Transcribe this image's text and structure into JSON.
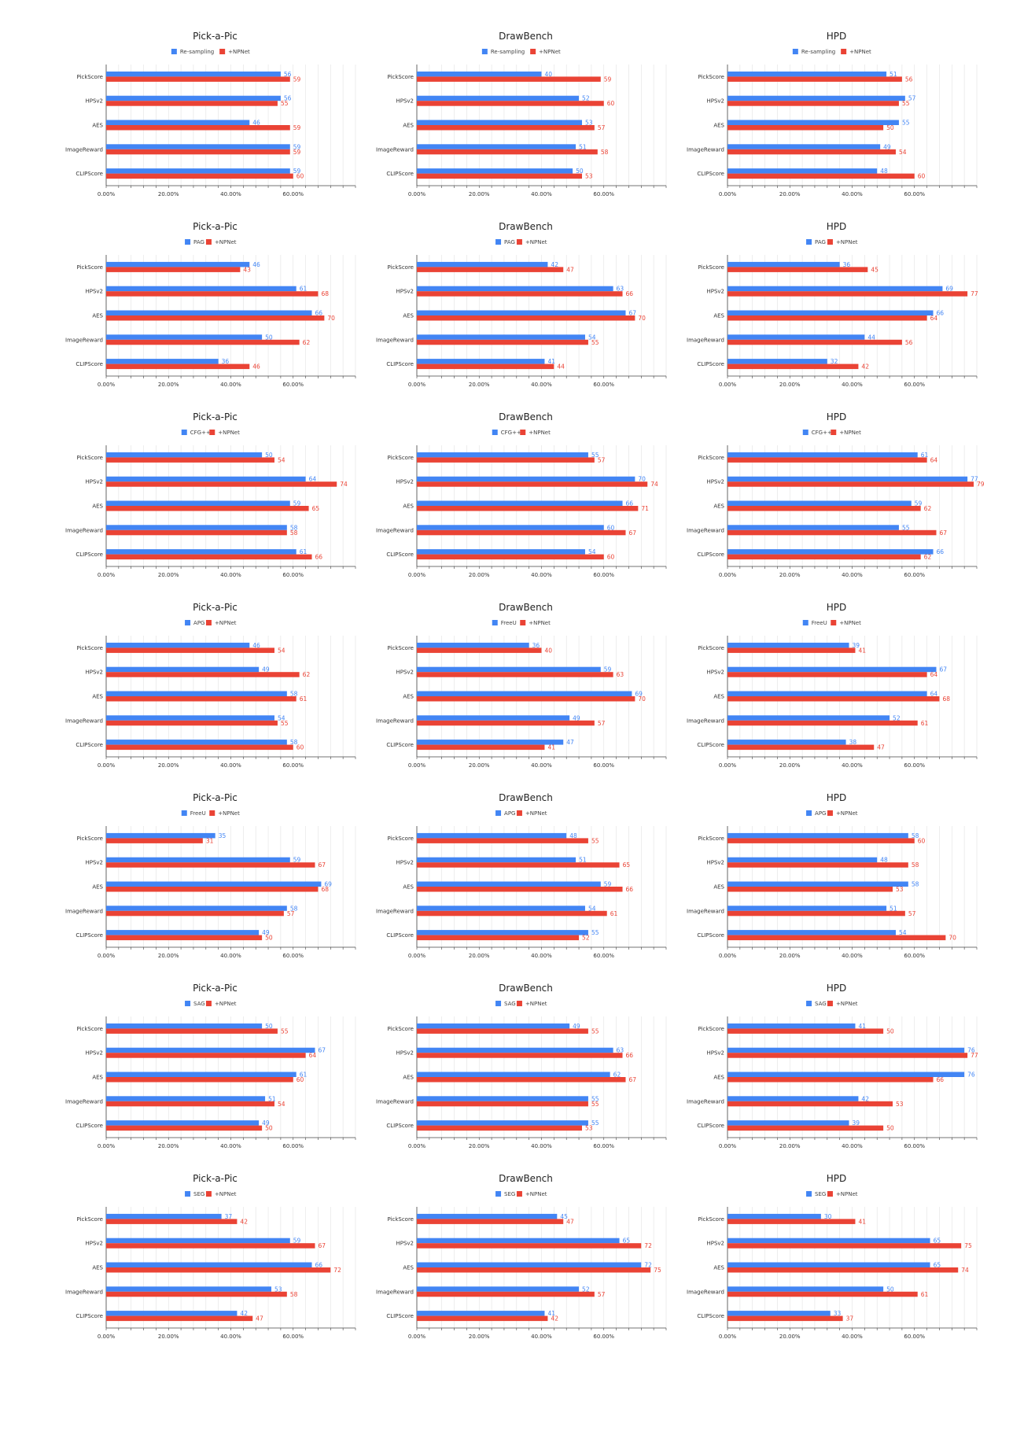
{
  "colors": {
    "baseline": "#4285F4",
    "npnet": "#EA4335",
    "grid": "#e2e2e2",
    "axis": "#444444"
  },
  "chart_data": [
    {
      "type": "bar",
      "title": "Pick-a-Pic",
      "series": [
        {
          "name": "Re-sampling",
          "values": [
            56,
            56,
            46,
            59,
            59
          ]
        },
        {
          "name": "+NPNet",
          "values": [
            59,
            55,
            59,
            59,
            60
          ]
        }
      ],
      "categories": [
        "PickScore",
        "HPSv2",
        "AES",
        "ImageReward",
        "CLIPScore"
      ],
      "xticks": [
        "0.00%",
        "20.00%",
        "40.00%",
        "60.00%"
      ],
      "xlim": [
        0,
        80
      ]
    },
    {
      "type": "bar",
      "title": "DrawBench",
      "series": [
        {
          "name": "Re-sampling",
          "values": [
            40,
            52,
            53,
            51,
            50
          ]
        },
        {
          "name": "+NPNet",
          "values": [
            59,
            60,
            57,
            58,
            53
          ]
        }
      ],
      "categories": [
        "PickScore",
        "HPSv2",
        "AES",
        "ImageReward",
        "CLIPScore"
      ],
      "xticks": [
        "0.00%",
        "20.00%",
        "40.00%",
        "60.00%"
      ],
      "xlim": [
        0,
        80
      ]
    },
    {
      "type": "bar",
      "title": "HPD",
      "series": [
        {
          "name": "Re-sampling",
          "values": [
            51,
            57,
            55,
            49,
            48
          ]
        },
        {
          "name": "+NPNet",
          "values": [
            56,
            55,
            50,
            54,
            60
          ]
        }
      ],
      "categories": [
        "PickScore",
        "HPSv2",
        "AES",
        "ImageReward",
        "CLIPScore"
      ],
      "xticks": [
        "0.00%",
        "20.00%",
        "40.00%",
        "60.00%"
      ],
      "xlim": [
        0,
        80
      ]
    },
    {
      "type": "bar",
      "title": "Pick-a-Pic",
      "series": [
        {
          "name": "PAG",
          "values": [
            46,
            61,
            66,
            50,
            36
          ]
        },
        {
          "name": "+NPNet",
          "values": [
            43,
            68,
            70,
            62,
            46
          ]
        }
      ],
      "categories": [
        "PickScore",
        "HPSv2",
        "AES",
        "ImageReward",
        "CLIPScore"
      ],
      "xticks": [
        "0.00%",
        "20.00%",
        "40.00%",
        "60.00%"
      ],
      "xlim": [
        0,
        80
      ]
    },
    {
      "type": "bar",
      "title": "DrawBench",
      "series": [
        {
          "name": "PAG",
          "values": [
            42,
            63,
            67,
            54,
            41
          ]
        },
        {
          "name": "+NPNet",
          "values": [
            47,
            66,
            70,
            55,
            44
          ]
        }
      ],
      "categories": [
        "PickScore",
        "HPSv2",
        "AES",
        "ImageReward",
        "CLIPScore"
      ],
      "xticks": [
        "0.00%",
        "20.00%",
        "40.00%",
        "60.00%"
      ],
      "xlim": [
        0,
        80
      ]
    },
    {
      "type": "bar",
      "title": "HPD",
      "series": [
        {
          "name": "PAG",
          "values": [
            36,
            69,
            66,
            44,
            32
          ]
        },
        {
          "name": "+NPNet",
          "values": [
            45,
            77,
            64,
            56,
            42
          ]
        }
      ],
      "categories": [
        "PickScore",
        "HPSv2",
        "AES",
        "ImageReward",
        "CLIPScore"
      ],
      "xticks": [
        "0.00%",
        "20.00%",
        "40.00%",
        "60.00%"
      ],
      "xlim": [
        0,
        80
      ]
    },
    {
      "type": "bar",
      "title": "Pick-a-Pic",
      "series": [
        {
          "name": "CFG++",
          "values": [
            50,
            64,
            59,
            58,
            61
          ]
        },
        {
          "name": "+NPNet",
          "values": [
            54,
            74,
            65,
            58,
            66
          ]
        }
      ],
      "categories": [
        "PickScore",
        "HPSv2",
        "AES",
        "ImageReward",
        "CLIPScore"
      ],
      "xticks": [
        "0.00%",
        "20.00%",
        "40.00%",
        "60.00%"
      ],
      "xlim": [
        0,
        80
      ]
    },
    {
      "type": "bar",
      "title": "DrawBench",
      "series": [
        {
          "name": "CFG++",
          "values": [
            55,
            70,
            66,
            60,
            54
          ]
        },
        {
          "name": "+NPNet",
          "values": [
            57,
            74,
            71,
            67,
            60
          ]
        }
      ],
      "categories": [
        "PickScore",
        "HPSv2",
        "AES",
        "ImageReward",
        "CLIPScore"
      ],
      "xticks": [
        "0.00%",
        "20.00%",
        "40.00%",
        "60.00%"
      ],
      "xlim": [
        0,
        80
      ]
    },
    {
      "type": "bar",
      "title": "HPD",
      "series": [
        {
          "name": "CFG++",
          "values": [
            61,
            77,
            59,
            55,
            66
          ]
        },
        {
          "name": "+NPNet",
          "values": [
            64,
            79,
            62,
            67,
            62
          ]
        }
      ],
      "categories": [
        "PickScore",
        "HPSv2",
        "AES",
        "ImageReward",
        "CLIPScore"
      ],
      "xticks": [
        "0.00%",
        "20.00%",
        "40.00%",
        "60.00%"
      ],
      "xlim": [
        0,
        80
      ]
    },
    {
      "type": "bar",
      "title": "Pick-a-Pic",
      "series": [
        {
          "name": "APG",
          "values": [
            46,
            49,
            58,
            54,
            58
          ]
        },
        {
          "name": "+NPNet",
          "values": [
            54,
            62,
            61,
            55,
            60
          ]
        }
      ],
      "categories": [
        "PickScore",
        "HPSv2",
        "AES",
        "ImageReward",
        "CLIPScore"
      ],
      "xticks": [
        "0.00%",
        "20.00%",
        "40.00%",
        "60.00%"
      ],
      "xlim": [
        0,
        80
      ]
    },
    {
      "type": "bar",
      "title": "DrawBench",
      "series": [
        {
          "name": "FreeU",
          "values": [
            36,
            59,
            69,
            49,
            47
          ]
        },
        {
          "name": "+NPNet",
          "values": [
            40,
            63,
            70,
            57,
            41
          ]
        }
      ],
      "categories": [
        "PickScore",
        "HPSv2",
        "AES",
        "ImageReward",
        "CLIPScore"
      ],
      "xticks": [
        "0.00%",
        "20.00%",
        "40.00%",
        "60.00%"
      ],
      "xlim": [
        0,
        80
      ]
    },
    {
      "type": "bar",
      "title": "HPD",
      "series": [
        {
          "name": "FreeU",
          "values": [
            39,
            67,
            64,
            52,
            38
          ]
        },
        {
          "name": "+NPNet",
          "values": [
            41,
            64,
            68,
            61,
            47
          ]
        }
      ],
      "categories": [
        "PickScore",
        "HPSv2",
        "AES",
        "ImageReward",
        "CLIPScore"
      ],
      "xticks": [
        "0.00%",
        "20.00%",
        "40.00%",
        "60.00%"
      ],
      "xlim": [
        0,
        80
      ]
    },
    {
      "type": "bar",
      "title": "Pick-a-Pic",
      "series": [
        {
          "name": "FreeU",
          "values": [
            35,
            59,
            69,
            58,
            49
          ]
        },
        {
          "name": "+NPNet",
          "values": [
            31,
            67,
            68,
            57,
            50
          ]
        }
      ],
      "categories": [
        "PickScore",
        "HPSv2",
        "AES",
        "ImageReward",
        "CLIPScore"
      ],
      "xticks": [
        "0.00%",
        "20.00%",
        "40.00%",
        "60.00%"
      ],
      "xlim": [
        0,
        80
      ]
    },
    {
      "type": "bar",
      "title": "DrawBench",
      "series": [
        {
          "name": "APG",
          "values": [
            48,
            51,
            59,
            54,
            55
          ]
        },
        {
          "name": "+NPNet",
          "values": [
            55,
            65,
            66,
            61,
            52
          ]
        }
      ],
      "categories": [
        "PickScore",
        "HPSv2",
        "AES",
        "ImageReward",
        "CLIPScore"
      ],
      "xticks": [
        "0.00%",
        "20.00%",
        "40.00%",
        "60.00%"
      ],
      "xlim": [
        0,
        80
      ]
    },
    {
      "type": "bar",
      "title": "HPD",
      "series": [
        {
          "name": "APG",
          "values": [
            58,
            48,
            58,
            51,
            54
          ]
        },
        {
          "name": "+NPNet",
          "values": [
            60,
            58,
            53,
            57,
            70
          ]
        }
      ],
      "categories": [
        "PickScore",
        "HPSv2",
        "AES",
        "ImageReward",
        "CLIPScore"
      ],
      "xticks": [
        "0.00%",
        "20.00%",
        "40.00%",
        "60.00%"
      ],
      "xlim": [
        0,
        80
      ]
    },
    {
      "type": "bar",
      "title": "Pick-a-Pic",
      "series": [
        {
          "name": "SAG",
          "values": [
            50,
            67,
            61,
            51,
            49
          ]
        },
        {
          "name": "+NPNet",
          "values": [
            55,
            64,
            60,
            54,
            50
          ]
        }
      ],
      "categories": [
        "PickScore",
        "HPSv2",
        "AES",
        "ImageReward",
        "CLIPScore"
      ],
      "xticks": [
        "0.00%",
        "20.00%",
        "40.00%",
        "60.00%"
      ],
      "xlim": [
        0,
        80
      ]
    },
    {
      "type": "bar",
      "title": "DrawBench",
      "series": [
        {
          "name": "SAG",
          "values": [
            49,
            63,
            62,
            55,
            55
          ]
        },
        {
          "name": "+NPNet",
          "values": [
            55,
            66,
            67,
            55,
            53
          ]
        }
      ],
      "categories": [
        "PickScore",
        "HPSv2",
        "AES",
        "ImageReward",
        "CLIPScore"
      ],
      "xticks": [
        "0.00%",
        "20.00%",
        "40.00%",
        "60.00%"
      ],
      "xlim": [
        0,
        80
      ]
    },
    {
      "type": "bar",
      "title": "HPD",
      "series": [
        {
          "name": "SAG",
          "values": [
            41,
            76,
            76,
            42,
            39
          ]
        },
        {
          "name": "+NPNet",
          "values": [
            50,
            77,
            66,
            53,
            50
          ]
        }
      ],
      "categories": [
        "PickScore",
        "HPSv2",
        "AES",
        "ImageReward",
        "CLIPScore"
      ],
      "xticks": [
        "0.00%",
        "20.00%",
        "40.00%",
        "60.00%"
      ],
      "xlim": [
        0,
        80
      ]
    },
    {
      "type": "bar",
      "title": "Pick-a-Pic",
      "series": [
        {
          "name": "SEG",
          "values": [
            37,
            59,
            66,
            53,
            42
          ]
        },
        {
          "name": "+NPNet",
          "values": [
            42,
            67,
            72,
            58,
            47
          ]
        }
      ],
      "categories": [
        "PickScore",
        "HPSv2",
        "AES",
        "ImageReward",
        "CLIPScore"
      ],
      "xticks": [
        "0.00%",
        "20.00%",
        "40.00%",
        "60.00%"
      ],
      "xlim": [
        0,
        80
      ]
    },
    {
      "type": "bar",
      "title": "DrawBench",
      "series": [
        {
          "name": "SEG",
          "values": [
            45,
            65,
            72,
            52,
            41
          ]
        },
        {
          "name": "+NPNet",
          "values": [
            47,
            72,
            75,
            57,
            42
          ]
        }
      ],
      "categories": [
        "PickScore",
        "HPSv2",
        "AES",
        "ImageReward",
        "CLIPScore"
      ],
      "xticks": [
        "0.00%",
        "20.00%",
        "40.00%",
        "60.00%"
      ],
      "xlim": [
        0,
        80
      ]
    },
    {
      "type": "bar",
      "title": "HPD",
      "series": [
        {
          "name": "SEG",
          "values": [
            30,
            65,
            65,
            50,
            33
          ]
        },
        {
          "name": "+NPNet",
          "values": [
            41,
            75,
            74,
            61,
            37
          ]
        }
      ],
      "categories": [
        "PickScore",
        "HPSv2",
        "AES",
        "ImageReward",
        "CLIPScore"
      ],
      "xticks": [
        "0.00%",
        "20.00%",
        "40.00%",
        "60.00%"
      ],
      "xlim": [
        0,
        80
      ]
    }
  ]
}
